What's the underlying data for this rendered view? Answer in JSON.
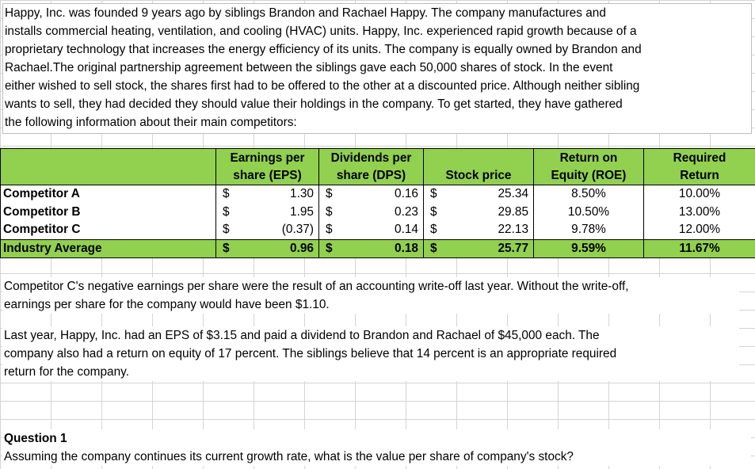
{
  "intro": [
    "Happy, Inc. was founded 9 years ago by siblings Brandon and Rachael Happy. The company manufactures and",
    "installs commercial heating, ventilation, and cooling (HVAC) units. Happy, Inc. experienced rapid growth because of a",
    "proprietary technology that increases the energy efficiency of its units. The company is equally owned by Brandon and",
    "Rachael.The original partnership agreement between the siblings gave each 50,000 shares of stock. In the event",
    "either wished to sell stock, the shares first had to be offered to the other at a discounted price.  Although neither sibling",
    "wants to sell, they had decided they should value their holdings in the company. To get started, they have gathered",
    "the following information about their main competitors:"
  ],
  "table": {
    "headers": {
      "eps": [
        "Earnings per",
        "share (EPS)"
      ],
      "dps": [
        "Dividends per",
        "share (DPS)"
      ],
      "price": [
        "",
        "Stock price"
      ],
      "roe": [
        "Return on",
        "Equity (ROE)"
      ],
      "req": [
        "Required",
        "Return"
      ]
    },
    "currency": "$",
    "rows": [
      {
        "name": "Competitor A",
        "eps": "1.30",
        "dps": "0.16",
        "price": "25.34",
        "roe": "8.50%",
        "req": "10.00%"
      },
      {
        "name": "Competitor B",
        "eps": "1.95",
        "dps": "0.23",
        "price": "29.85",
        "roe": "10.50%",
        "req": "13.00%"
      },
      {
        "name": "Competitor C",
        "eps": "(0.37)",
        "dps": "0.14",
        "price": "22.13",
        "roe": "9.78%",
        "req": "12.00%"
      },
      {
        "name": "Industry Average",
        "eps": "0.96",
        "dps": "0.18",
        "price": "25.77",
        "roe": "9.59%",
        "req": "11.67%"
      }
    ]
  },
  "note1": [
    "Competitor C's negative earnings per share were the result of an accounting write-off last year. Without the write-off,",
    "earnings per share for the company would have been $1.10."
  ],
  "note2": [
    "Last year, Happy, Inc. had an EPS of $3.15 and paid a dividend to Brandon and Rachael of $45,000 each. The",
    "company also had a return on equity of 17 percent. The siblings believe that 14 percent is an appropriate required",
    "return for the company."
  ],
  "question": {
    "title": "Question 1",
    "text": "Assuming the company continues its current growth rate, what is the value per share of company's stock?"
  },
  "colors": {
    "header_green": "#92d050",
    "gridline": "#d4d4d4"
  }
}
